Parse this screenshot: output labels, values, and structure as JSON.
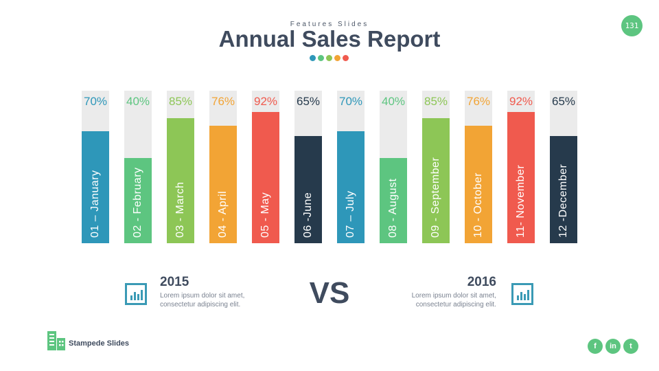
{
  "header": {
    "subtitle": "Features Slides",
    "title": "Annual Sales Report",
    "page_number": "131",
    "dot_colors": [
      "#2e97b9",
      "#5dc580",
      "#8dc656",
      "#f2a435",
      "#f05a4e"
    ]
  },
  "chart_data": {
    "type": "bar",
    "title": "Annual Sales Report",
    "categories": [
      "01 – January",
      "02 - February",
      "03 - March",
      "04 - April",
      "05 - May",
      "06 -June",
      "07 – July",
      "08 - August",
      "09 - September",
      "10 - October",
      "11- November",
      "12 -December"
    ],
    "values": [
      70,
      40,
      85,
      76,
      92,
      65,
      70,
      40,
      85,
      76,
      92,
      65
    ],
    "value_labels": [
      "70%",
      "40%",
      "85%",
      "76%",
      "92%",
      "65%",
      "70%",
      "40%",
      "85%",
      "76%",
      "92%",
      "65%"
    ],
    "colors": [
      "#2e97b9",
      "#5dc580",
      "#8dc656",
      "#f2a435",
      "#f05a4e",
      "#263a4c",
      "#2e97b9",
      "#5dc580",
      "#8dc656",
      "#f2a435",
      "#f05a4e",
      "#263a4c"
    ],
    "ylim": [
      0,
      100
    ]
  },
  "comparison": {
    "left_year": "2015",
    "left_text_1": "Lorem ipsum dolor sit amet,",
    "left_text_2": "consectetur adipiscing elit.",
    "vs": "VS",
    "right_year": "2016",
    "right_text_1": "Lorem ipsum dolor sit amet,",
    "right_text_2": "consectetur adipiscing elit."
  },
  "footer": {
    "brand": "Stampede Slides",
    "social": [
      "f",
      "in",
      "t"
    ]
  }
}
